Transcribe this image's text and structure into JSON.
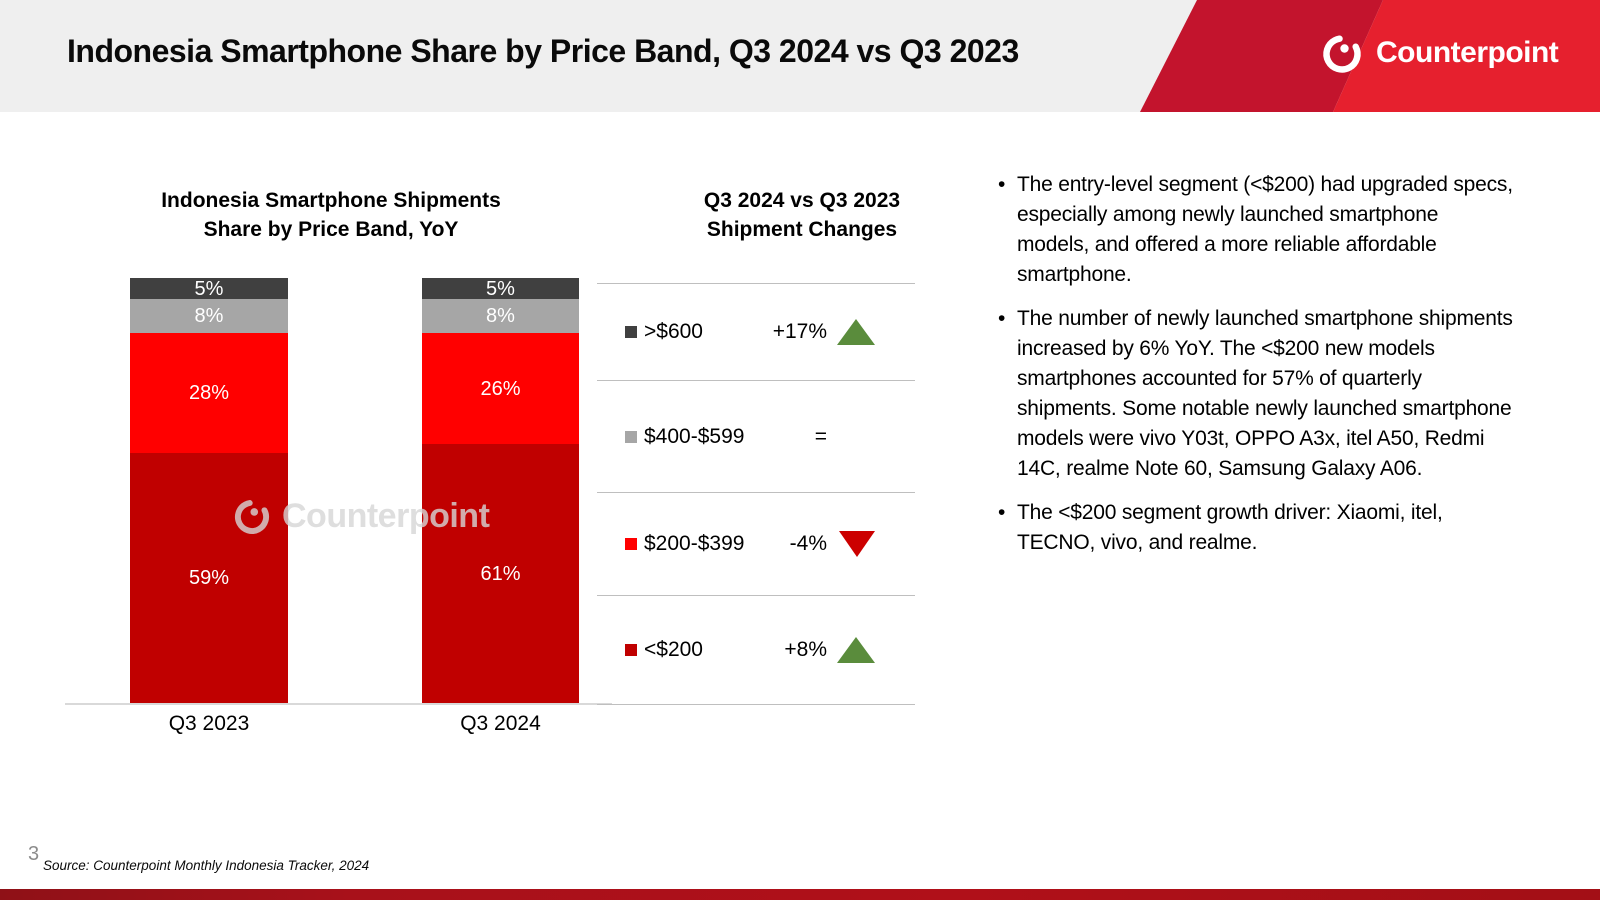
{
  "header": {
    "title": "Indonesia Smartphone Share by Price Band, Q3 2024 vs Q3 2023",
    "brand": "Counterpoint"
  },
  "chart": {
    "title_line1": "Indonesia Smartphone Shipments",
    "title_line2": "Share by Price Band, YoY",
    "watermark": "Counterpoint"
  },
  "chart_data": {
    "type": "bar",
    "stacked": true,
    "title": "Indonesia Smartphone Shipments Share by Price Band, YoY",
    "categories": [
      "Q3 2023",
      "Q3 2024"
    ],
    "series": [
      {
        "name": "<$200",
        "color": "#C00000",
        "values": [
          59,
          61
        ]
      },
      {
        "name": "$200-$399",
        "color": "#FF0000",
        "values": [
          28,
          26
        ]
      },
      {
        "name": "$400-$599",
        "color": "#A6A6A6",
        "values": [
          8,
          8
        ]
      },
      {
        "name": ">$600",
        "color": "#404040",
        "values": [
          5,
          5
        ]
      }
    ],
    "value_suffix": "%",
    "ylim": [
      0,
      100
    ],
    "grid": false,
    "legend_position": "none"
  },
  "changes": {
    "title_line1": "Q3 2024 vs Q3 2023",
    "title_line2": "Shipment Changes",
    "rows": [
      {
        "band": ">$600",
        "color": "#404040",
        "value": "+17%",
        "direction": "up"
      },
      {
        "band": "$400-$599",
        "color": "#A6A6A6",
        "value": "=",
        "direction": "flat"
      },
      {
        "band": "$200-$399",
        "color": "#FF0000",
        "value": "-4%",
        "direction": "down"
      },
      {
        "band": "<$200",
        "color": "#C00000",
        "value": "+8%",
        "direction": "up"
      }
    ]
  },
  "insights": [
    "The entry-level segment (<$200) had upgraded specs, especially among newly launched smartphone models, and offered a more reliable affordable smartphone.",
    "The number of newly launched smartphone shipments increased by 6% YoY. The <$200 new models smartphones accounted for 57% of quarterly shipments. Some notable newly launched smartphone models were vivo Y03t, OPPO A3x, itel A50, Redmi 14C, realme Note 60, Samsung Galaxy A06.",
    "The <$200 segment growth driver: Xiaomi, itel, TECNO, vivo, and realme."
  ],
  "footer": {
    "page_number": "3",
    "source": "Source: Counterpoint Monthly Indonesia Tracker, 2024"
  },
  "colors": {
    "header_bg": "#EFEFEF",
    "diag_dark_red": "#C3142D",
    "diag_bright_red": "#E6202E",
    "up_green": "#5A8C3C",
    "down_red": "#CC0000",
    "divider": "#BFBFBF",
    "bottom_bar": "#A8111A"
  }
}
